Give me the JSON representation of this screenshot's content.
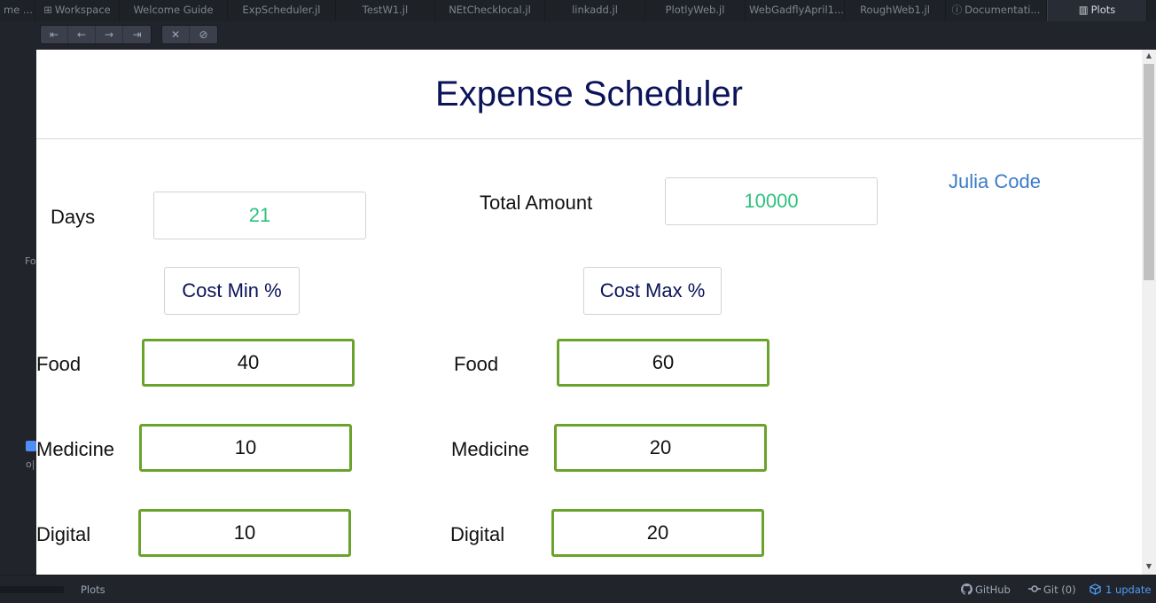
{
  "tabs": [
    {
      "label": "me ..."
    },
    {
      "label": "Workspace",
      "icon": "⊞"
    },
    {
      "label": "Welcome Guide"
    },
    {
      "label": "ExpScheduler.jl"
    },
    {
      "label": "TestW1.jl"
    },
    {
      "label": "NEtChecklocal.jl"
    },
    {
      "label": "linkadd.jl"
    },
    {
      "label": "PlotlyWeb.jl"
    },
    {
      "label": "WebGadflyApril1..."
    },
    {
      "label": "RoughWeb1.jl"
    },
    {
      "label": "Documentati...",
      "icon": "ⓘ"
    },
    {
      "label": "Plots",
      "icon": "▥"
    }
  ],
  "toolbar": {
    "first_icon": "⇤",
    "prev_icon": "←",
    "next_icon": "→",
    "last_icon": "⇥",
    "close_icon": "✕",
    "clear_icon": "⊘"
  },
  "gutter": {
    "frag1": "Fo",
    "frag2": "o|"
  },
  "app": {
    "title": "Expense Scheduler",
    "days_label": "Days",
    "days_value": "21",
    "total_label": "Total Amount",
    "total_value": "10000",
    "julia_link": "Julia Code",
    "cost_min_label": "Cost Min %",
    "cost_max_label": "Cost Max %",
    "rows": [
      {
        "label": "Food",
        "min": "40",
        "max": "60"
      },
      {
        "label": "Medicine",
        "min": "10",
        "max": "20"
      },
      {
        "label": "Digital",
        "min": "10",
        "max": "20"
      }
    ]
  },
  "statusbar": {
    "plots": "Plots",
    "github": "GitHub",
    "git": "Git (0)",
    "update": "1 update"
  }
}
